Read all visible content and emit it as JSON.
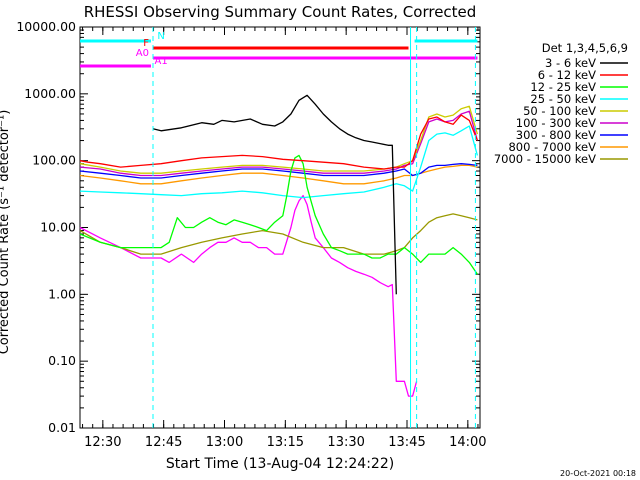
{
  "chart_data": {
    "type": "line",
    "title": "RHESSI Observing Summary Count Rates, Corrected",
    "xlabel": "Start Time (13-Aug-04 12:24:22)",
    "ylabel": "Corrected Count Rate (s⁻¹ detector⁻¹)",
    "yscale": "log",
    "ylim": [
      0.01,
      10000
    ],
    "xlim": [
      "12:24:22",
      "14:03:00"
    ],
    "x_ticks": [
      {
        "label": "12:30",
        "min": 5.63
      },
      {
        "label": "12:45",
        "min": 20.63
      },
      {
        "label": "13:00",
        "min": 35.63
      },
      {
        "label": "13:15",
        "min": 50.63
      },
      {
        "label": "13:30",
        "min": 65.63
      },
      {
        "label": "13:45",
        "min": 80.63
      },
      {
        "label": "14:00",
        "min": 95.63
      }
    ],
    "y_ticks": [
      "0.01",
      "0.10",
      "1.00",
      "10.00",
      "100.00",
      "1000.00",
      "10000.00"
    ],
    "legend_title": "Det 1,3,4,5,6,9",
    "legend_position": "right",
    "footer_date": "20-Oct-2021 00:18",
    "flags": [
      {
        "label": "N",
        "color": "#00ffff"
      },
      {
        "label": "F",
        "color": "#ff0000"
      },
      {
        "label": "A0",
        "color": "#ff00ff"
      },
      {
        "label": "A1",
        "color": "#ff00ff"
      }
    ],
    "series": [
      {
        "name": "3 - 6 keV",
        "color": "#000000",
        "x": [
          18,
          20,
          25,
          30,
          33,
          35,
          38,
          42,
          45,
          48,
          50,
          52,
          54,
          56,
          58,
          60,
          62,
          64,
          66,
          68,
          70,
          72,
          74,
          76,
          77,
          78
        ],
        "y": [
          300,
          280,
          310,
          370,
          350,
          400,
          380,
          420,
          350,
          330,
          380,
          500,
          800,
          950,
          700,
          500,
          380,
          300,
          250,
          220,
          200,
          190,
          180,
          170,
          170,
          1
        ]
      },
      {
        "name": "6 - 12 keV",
        "color": "#ff0000",
        "x": [
          0,
          2,
          5,
          10,
          15,
          20,
          25,
          30,
          35,
          40,
          45,
          50,
          55,
          60,
          65,
          70,
          75,
          78,
          80,
          82,
          84,
          86,
          88,
          90,
          92,
          94,
          96,
          98
        ],
        "y": [
          100,
          95,
          90,
          80,
          85,
          90,
          100,
          110,
          115,
          120,
          115,
          105,
          100,
          95,
          90,
          80,
          75,
          80,
          80,
          100,
          250,
          420,
          450,
          380,
          350,
          480,
          400,
          200
        ]
      },
      {
        "name": "12 - 25 keV",
        "color": "#00ff00",
        "x": [
          0,
          5,
          10,
          15,
          20,
          22,
          24,
          26,
          28,
          30,
          32,
          34,
          36,
          38,
          40,
          42,
          44,
          46,
          48,
          50,
          51,
          52,
          53,
          54,
          55,
          56,
          58,
          60,
          62,
          64,
          66,
          68,
          70,
          72,
          74,
          76,
          77,
          78,
          80,
          82,
          84,
          86,
          88,
          90,
          92,
          94,
          96,
          98
        ],
        "y": [
          8,
          6,
          5,
          5,
          5,
          6,
          14,
          10,
          10,
          12,
          14,
          12,
          11,
          13,
          12,
          11,
          10,
          9,
          12,
          15,
          30,
          70,
          110,
          120,
          90,
          40,
          15,
          8,
          5,
          4.5,
          4,
          4,
          4,
          3.5,
          3.5,
          4,
          4,
          4,
          5,
          4,
          3,
          4,
          4,
          4,
          5,
          4,
          3,
          2
        ]
      },
      {
        "name": "25 - 50 keV",
        "color": "#00ffff",
        "x": [
          0,
          5,
          10,
          15,
          20,
          25,
          30,
          35,
          40,
          45,
          50,
          55,
          60,
          65,
          70,
          75,
          78,
          80,
          82,
          84,
          86,
          88,
          90,
          92,
          94,
          96,
          98
        ],
        "y": [
          35,
          34,
          33,
          32,
          31,
          30,
          32,
          33,
          35,
          33,
          30,
          28,
          30,
          32,
          34,
          40,
          45,
          42,
          35,
          80,
          200,
          250,
          260,
          240,
          280,
          330,
          120
        ]
      },
      {
        "name": "50 - 100 keV",
        "color": "#cccc00",
        "x": [
          0,
          5,
          10,
          15,
          20,
          25,
          30,
          35,
          40,
          45,
          50,
          55,
          60,
          65,
          70,
          75,
          78,
          80,
          82,
          84,
          86,
          88,
          90,
          92,
          94,
          96,
          98
        ],
        "y": [
          90,
          80,
          70,
          65,
          65,
          70,
          75,
          80,
          85,
          85,
          80,
          75,
          70,
          70,
          70,
          75,
          80,
          90,
          100,
          200,
          450,
          500,
          450,
          480,
          600,
          650,
          250
        ]
      },
      {
        "name": "100 - 300 keV",
        "color": "#cc00cc",
        "x": [
          0,
          5,
          10,
          15,
          20,
          25,
          30,
          35,
          40,
          45,
          50,
          55,
          60,
          65,
          70,
          75,
          78,
          80,
          82,
          84,
          86,
          88,
          90,
          92,
          94,
          96,
          98
        ],
        "y": [
          80,
          75,
          65,
          60,
          60,
          65,
          70,
          75,
          80,
          80,
          75,
          70,
          65,
          65,
          65,
          70,
          75,
          85,
          90,
          180,
          380,
          420,
          380,
          400,
          500,
          550,
          200
        ]
      },
      {
        "name": "300 - 800 keV",
        "color": "#0000ff",
        "x": [
          0,
          5,
          10,
          15,
          20,
          25,
          30,
          35,
          40,
          45,
          50,
          55,
          60,
          65,
          70,
          75,
          78,
          80,
          82,
          84,
          86,
          88,
          90,
          92,
          94,
          96,
          98
        ],
        "y": [
          70,
          65,
          60,
          55,
          55,
          60,
          65,
          70,
          75,
          75,
          70,
          65,
          60,
          60,
          60,
          65,
          70,
          75,
          60,
          65,
          80,
          85,
          85,
          88,
          90,
          88,
          85
        ]
      },
      {
        "name": "800 - 7000 keV",
        "color": "#ff9900",
        "x": [
          0,
          5,
          10,
          15,
          20,
          25,
          30,
          35,
          40,
          45,
          50,
          55,
          60,
          65,
          70,
          75,
          78,
          80,
          82,
          84,
          86,
          88,
          90,
          92,
          94,
          96,
          98
        ],
        "y": [
          60,
          55,
          50,
          45,
          45,
          50,
          55,
          60,
          65,
          65,
          60,
          55,
          50,
          45,
          45,
          50,
          55,
          60,
          60,
          65,
          70,
          75,
          80,
          82,
          85,
          85,
          80
        ]
      },
      {
        "name": "7000 - 15000 keV",
        "color": "#999900",
        "x": [
          0,
          5,
          10,
          15,
          20,
          25,
          30,
          35,
          40,
          45,
          50,
          55,
          60,
          65,
          70,
          75,
          78,
          80,
          82,
          84,
          86,
          88,
          90,
          92,
          94,
          96,
          98
        ],
        "y": [
          9,
          6,
          5,
          4,
          4,
          5,
          6,
          7,
          8,
          9,
          8,
          6,
          5,
          5,
          4,
          4,
          4.5,
          5,
          7,
          9,
          12,
          14,
          15,
          16,
          15,
          14,
          13
        ]
      },
      {
        "name": "",
        "color": "#ff00ff",
        "x": [
          0,
          5,
          10,
          15,
          18,
          20,
          22,
          25,
          28,
          30,
          32,
          34,
          36,
          38,
          40,
          42,
          44,
          46,
          48,
          50,
          52,
          53,
          54,
          55,
          56,
          57,
          58,
          60,
          62,
          64,
          66,
          68,
          70,
          72,
          74,
          76,
          77,
          78,
          79,
          80,
          81,
          82,
          83
        ],
        "y": [
          10,
          7,
          5,
          3.5,
          3.5,
          3.5,
          3,
          4,
          3,
          4,
          5,
          6,
          6,
          7,
          6,
          6,
          5,
          5,
          4,
          4,
          10,
          18,
          25,
          30,
          22,
          12,
          7,
          5,
          3.5,
          3,
          2.5,
          2.2,
          2,
          1.8,
          1.5,
          1.3,
          1.4,
          0.05,
          0.05,
          0.05,
          0.03,
          0.03,
          0.05
        ]
      }
    ]
  }
}
